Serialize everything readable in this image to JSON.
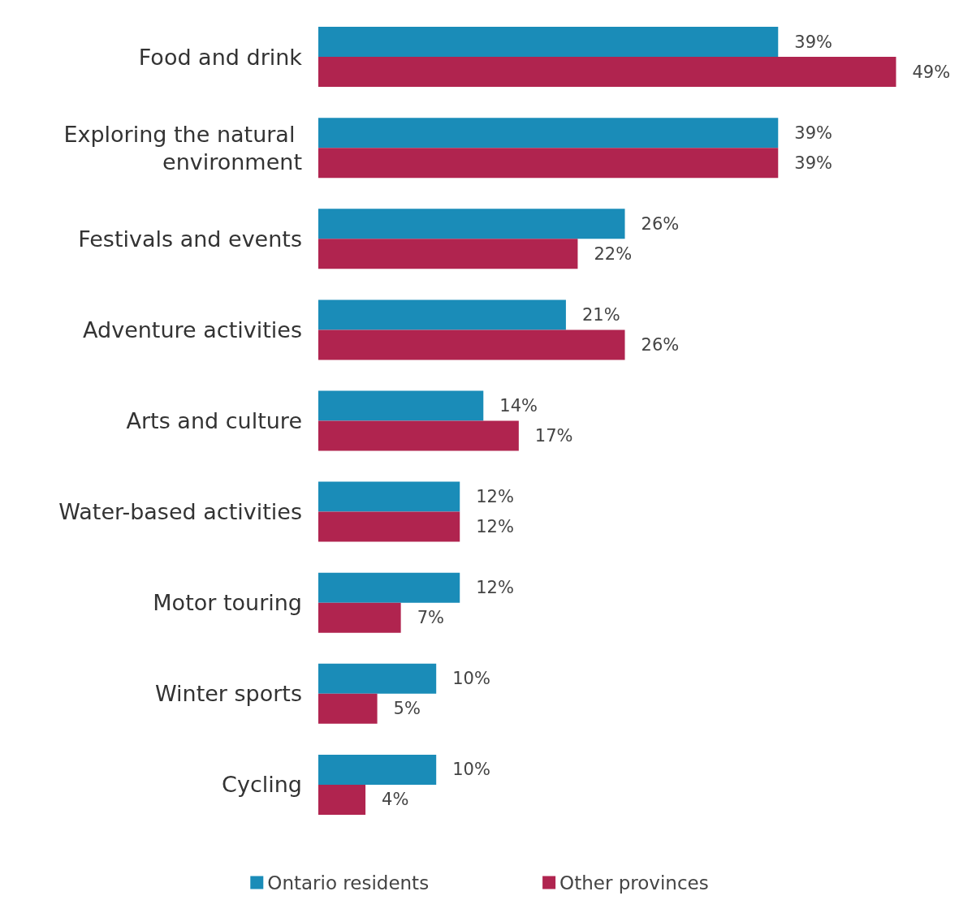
{
  "chart_data": {
    "type": "bar",
    "orientation": "horizontal",
    "categories": [
      "Food and drink",
      "Exploring the natural environment",
      "Festivals and events",
      "Adventure activities",
      "Arts and culture",
      "Water-based activities",
      "Motor touring",
      "Winter sports",
      "Cycling"
    ],
    "series": [
      {
        "name": "Ontario residents",
        "color": "#1a8cb8",
        "values": [
          39,
          39,
          26,
          21,
          14,
          12,
          12,
          10,
          10
        ],
        "value_labels": [
          "39%",
          "39%",
          "26%",
          "21%",
          "14%",
          "12%",
          "12%",
          "10%",
          "10%"
        ]
      },
      {
        "name": "Other provinces",
        "color": "#b0244f",
        "values": [
          49,
          39,
          22,
          26,
          17,
          12,
          7,
          5,
          4
        ],
        "value_labels": [
          "49%",
          "39%",
          "22%",
          "26%",
          "17%",
          "12%",
          "7%",
          "5%",
          "4%"
        ]
      }
    ],
    "legend": "bottom",
    "grid": false
  }
}
